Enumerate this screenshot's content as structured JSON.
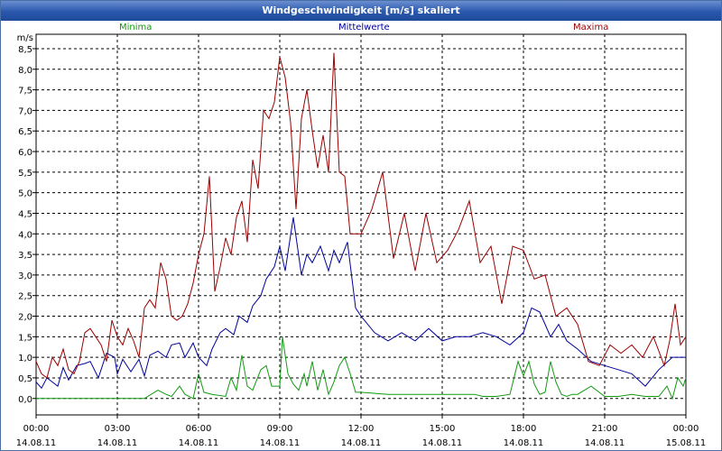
{
  "window": {
    "title": "Windgeschwindigkeit [m/s] skaliert"
  },
  "colors": {
    "minima": "#109a10",
    "mittelwerte": "#00009a",
    "maxima": "#9a0000",
    "titlebar": "#2a58ad"
  },
  "chart_data": {
    "type": "line",
    "title": "Windgeschwindigkeit [m/s] skaliert",
    "ylabel": "m/s",
    "xlabel": "",
    "ylim": [
      -0.4,
      8.85
    ],
    "xlim_hours": [
      0,
      24
    ],
    "grid": true,
    "yticks": [
      "0,0",
      "0,5",
      "1,0",
      "1,5",
      "2,0",
      "2,5",
      "3,0",
      "3,5",
      "4,0",
      "4,5",
      "5,0",
      "5,5",
      "6,0",
      "6,5",
      "7,0",
      "7,5",
      "8,0",
      "8,5"
    ],
    "xticks": [
      {
        "time": "00:00",
        "date": "14.08.11"
      },
      {
        "time": "03:00",
        "date": "14.08.11"
      },
      {
        "time": "06:00",
        "date": "14.08.11"
      },
      {
        "time": "09:00",
        "date": "14.08.11"
      },
      {
        "time": "12:00",
        "date": "14.08.11"
      },
      {
        "time": "15:00",
        "date": "14.08.11"
      },
      {
        "time": "18:00",
        "date": "14.08.11"
      },
      {
        "time": "21:00",
        "date": "14.08.11"
      },
      {
        "time": "00:00",
        "date": "15.08.11"
      }
    ],
    "series": [
      {
        "name": "Minima",
        "x": [
          0,
          1,
          2,
          3,
          4,
          4.5,
          4.8,
          5,
          5.3,
          5.5,
          5.8,
          6,
          6.2,
          6.5,
          7,
          7.2,
          7.4,
          7.6,
          7.8,
          8,
          8.3,
          8.5,
          8.7,
          9,
          9.1,
          9.3,
          9.5,
          9.7,
          9.9,
          10,
          10.2,
          10.4,
          10.6,
          10.8,
          11,
          11.2,
          11.4,
          11.6,
          11.8,
          12,
          13,
          14,
          15,
          16,
          16.2,
          16.5,
          17,
          17.5,
          17.8,
          18,
          18.2,
          18.4,
          18.6,
          18.8,
          19,
          19.2,
          19.4,
          19.6,
          19.8,
          20,
          20.5,
          21,
          21.5,
          22,
          22.5,
          23,
          23.3,
          23.5,
          23.7,
          23.9,
          24
        ],
        "values": [
          0,
          0,
          0,
          0,
          0,
          0.2,
          0.1,
          0.05,
          0.3,
          0.1,
          0,
          0.6,
          0.15,
          0.1,
          0.05,
          0.5,
          0.2,
          1.05,
          0.3,
          0.2,
          0.7,
          0.8,
          0.3,
          0.3,
          1.5,
          0.6,
          0.35,
          0.2,
          0.6,
          0.3,
          0.9,
          0.2,
          0.7,
          0.1,
          0.4,
          0.8,
          1.0,
          0.6,
          0.15,
          0.15,
          0.1,
          0.1,
          0.1,
          0.1,
          0.1,
          0.05,
          0.05,
          0.1,
          0.9,
          0.55,
          0.9,
          0.35,
          0.1,
          0.15,
          0.9,
          0.4,
          0.1,
          0.05,
          0.1,
          0.1,
          0.3,
          0.05,
          0.05,
          0.1,
          0.05,
          0.05,
          0.3,
          0.0,
          0.5,
          0.3,
          0.5
        ]
      },
      {
        "name": "Mittelwerte",
        "x": [
          0,
          0.2,
          0.4,
          0.6,
          0.8,
          1,
          1.2,
          1.5,
          1.8,
          2,
          2.3,
          2.6,
          2.9,
          3,
          3.2,
          3.5,
          3.8,
          4,
          4.2,
          4.5,
          4.8,
          5,
          5.3,
          5.5,
          5.8,
          6,
          6.3,
          6.5,
          6.8,
          7,
          7.3,
          7.5,
          7.8,
          8,
          8.3,
          8.5,
          8.8,
          9,
          9.2,
          9.5,
          9.8,
          10,
          10.2,
          10.5,
          10.8,
          11,
          11.2,
          11.5,
          11.8,
          12,
          12.5,
          13,
          13.5,
          14,
          14.5,
          15,
          15.5,
          16,
          16.5,
          17,
          17.5,
          18,
          18.3,
          18.6,
          19,
          19.3,
          19.6,
          20,
          20.5,
          21,
          21.5,
          22,
          22.5,
          23,
          23.5,
          24
        ],
        "values": [
          0.4,
          0.25,
          0.5,
          0.4,
          0.3,
          0.75,
          0.45,
          0.8,
          0.85,
          0.9,
          0.5,
          1.1,
          1.0,
          0.6,
          0.95,
          0.65,
          0.95,
          0.55,
          1.05,
          1.15,
          1.0,
          1.3,
          1.35,
          1.0,
          1.35,
          1.0,
          0.8,
          1.2,
          1.6,
          1.7,
          1.55,
          2.0,
          1.85,
          2.25,
          2.5,
          2.9,
          3.2,
          3.7,
          3.1,
          4.4,
          3.0,
          3.5,
          3.3,
          3.7,
          3.1,
          3.6,
          3.3,
          3.8,
          2.2,
          2.0,
          1.6,
          1.4,
          1.6,
          1.4,
          1.7,
          1.4,
          1.5,
          1.5,
          1.6,
          1.5,
          1.3,
          1.6,
          2.2,
          2.1,
          1.5,
          1.8,
          1.4,
          1.2,
          0.9,
          0.8,
          0.7,
          0.6,
          0.3,
          0.7,
          1.0,
          1.0
        ]
      },
      {
        "name": "Maxima",
        "x": [
          0,
          0.2,
          0.4,
          0.6,
          0.8,
          1,
          1.2,
          1.4,
          1.6,
          1.8,
          2,
          2.2,
          2.4,
          2.6,
          2.8,
          3,
          3.2,
          3.4,
          3.6,
          3.8,
          4,
          4.2,
          4.4,
          4.6,
          4.8,
          5,
          5.2,
          5.4,
          5.6,
          5.8,
          6,
          6.2,
          6.4,
          6.6,
          6.8,
          7,
          7.2,
          7.4,
          7.6,
          7.8,
          8,
          8.2,
          8.4,
          8.6,
          8.8,
          9,
          9.2,
          9.4,
          9.6,
          9.8,
          10,
          10.2,
          10.4,
          10.6,
          10.8,
          11,
          11.2,
          11.4,
          11.6,
          11.8,
          12,
          12.4,
          12.8,
          13.2,
          13.6,
          14,
          14.4,
          14.8,
          15.2,
          15.6,
          16,
          16.4,
          16.8,
          17.2,
          17.6,
          18,
          18.4,
          18.8,
          19.2,
          19.6,
          20,
          20.4,
          20.8,
          21.2,
          21.6,
          22,
          22.4,
          22.8,
          23.2,
          23.4,
          23.6,
          23.8,
          24
        ],
        "values": [
          0.9,
          0.6,
          0.5,
          1.0,
          0.8,
          1.2,
          0.7,
          0.6,
          0.9,
          1.6,
          1.7,
          1.5,
          1.3,
          0.9,
          1.9,
          1.5,
          1.3,
          1.7,
          1.4,
          1.0,
          2.2,
          2.4,
          2.2,
          3.3,
          2.9,
          2.0,
          1.9,
          2.0,
          2.3,
          2.8,
          3.5,
          4.0,
          5.4,
          2.6,
          3.2,
          3.9,
          3.5,
          4.4,
          4.8,
          3.8,
          5.8,
          5.1,
          7.0,
          6.8,
          7.2,
          8.3,
          7.8,
          6.7,
          4.6,
          6.8,
          7.5,
          6.5,
          5.6,
          6.4,
          5.5,
          8.4,
          5.5,
          5.4,
          4.0,
          4.0,
          4.0,
          4.6,
          5.5,
          3.4,
          4.5,
          3.1,
          4.5,
          3.3,
          3.6,
          4.1,
          4.8,
          3.3,
          3.7,
          2.3,
          3.7,
          3.6,
          2.9,
          3.0,
          2.0,
          2.2,
          1.8,
          0.9,
          0.8,
          1.3,
          1.1,
          1.3,
          1.0,
          1.5,
          0.8,
          1.4,
          2.3,
          1.3,
          1.5
        ]
      }
    ]
  }
}
